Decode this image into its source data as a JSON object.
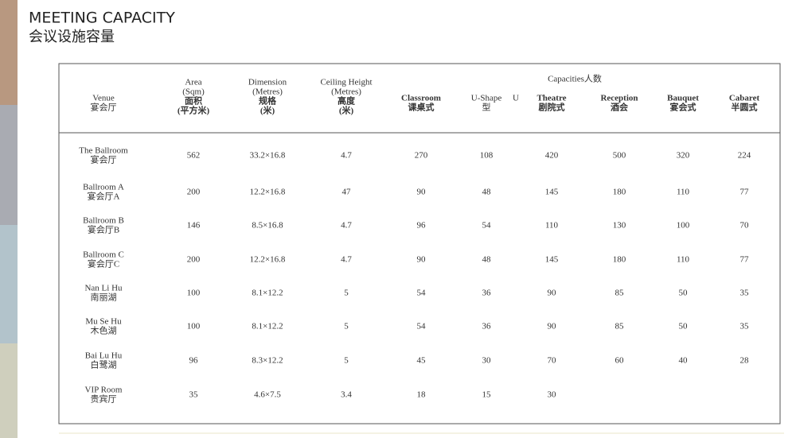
{
  "header": {
    "title": "MEETING CAPACITY",
    "subtitle": "会议设施容量"
  },
  "table": {
    "group_header": "Capacities人数",
    "columns": [
      {
        "lines": [
          "Venue",
          "宴会厅"
        ]
      },
      {
        "lines": [
          "Area",
          "(Sqm)",
          "面积",
          "(平方米)"
        ]
      },
      {
        "lines": [
          "Dimension",
          "(Metres)",
          "规格",
          "(米)"
        ]
      },
      {
        "lines": [
          "Ceiling Height",
          "(Metres)",
          "高度",
          "(米)"
        ]
      },
      {
        "lines": [
          "Classroom",
          "课桌式"
        ]
      },
      {
        "lines": [
          "U-Shape",
          "型"
        ],
        "mark": "U"
      },
      {
        "lines": [
          "Theatre",
          "剧院式"
        ]
      },
      {
        "lines": [
          "Reception",
          "酒会"
        ]
      },
      {
        "lines": [
          "Bauquet",
          "宴会式"
        ]
      },
      {
        "lines": [
          "Cabaret",
          "半圆式"
        ]
      }
    ],
    "rows": [
      {
        "name": [
          "The Ballroom",
          "宴会厅"
        ],
        "cells": [
          "562",
          "33.2×16.8",
          "4.7",
          "270",
          "108",
          "420",
          "500",
          "320",
          "224"
        ]
      },
      {
        "name": [
          "Ballroom A",
          "宴会厅A"
        ],
        "cells": [
          "200",
          "12.2×16.8",
          "47",
          "90",
          "48",
          "145",
          "180",
          "110",
          "77"
        ]
      },
      {
        "name": [
          "Ballroom B",
          "宴会厅B"
        ],
        "cells": [
          "146",
          "8.5×16.8",
          "4.7",
          "96",
          "54",
          "110",
          "130",
          "100",
          "70"
        ]
      },
      {
        "name": [
          "Ballroom C",
          "宴会厅C"
        ],
        "cells": [
          "200",
          "12.2×16.8",
          "4.7",
          "90",
          "48",
          "145",
          "180",
          "110",
          "77"
        ]
      },
      {
        "name": [
          "Nan Li Hu",
          "南丽湖"
        ],
        "cells": [
          "100",
          "8.1×12.2",
          "5",
          "54",
          "36",
          "90",
          "85",
          "50",
          "35"
        ]
      },
      {
        "name": [
          "Mu Se Hu",
          "木色湖"
        ],
        "cells": [
          "100",
          "8.1×12.2",
          "5",
          "54",
          "36",
          "90",
          "85",
          "50",
          "35"
        ]
      },
      {
        "name": [
          "Bai Lu Hu",
          "白鹭湖"
        ],
        "cells": [
          "96",
          "8.3×12.2",
          "5",
          "45",
          "30",
          "70",
          "60",
          "40",
          "28"
        ]
      },
      {
        "name": [
          "VIP Room",
          "贵宾厅"
        ],
        "cells": [
          "35",
          "4.6×7.5",
          "3.4",
          "18",
          "15",
          "30"
        ]
      }
    ]
  }
}
